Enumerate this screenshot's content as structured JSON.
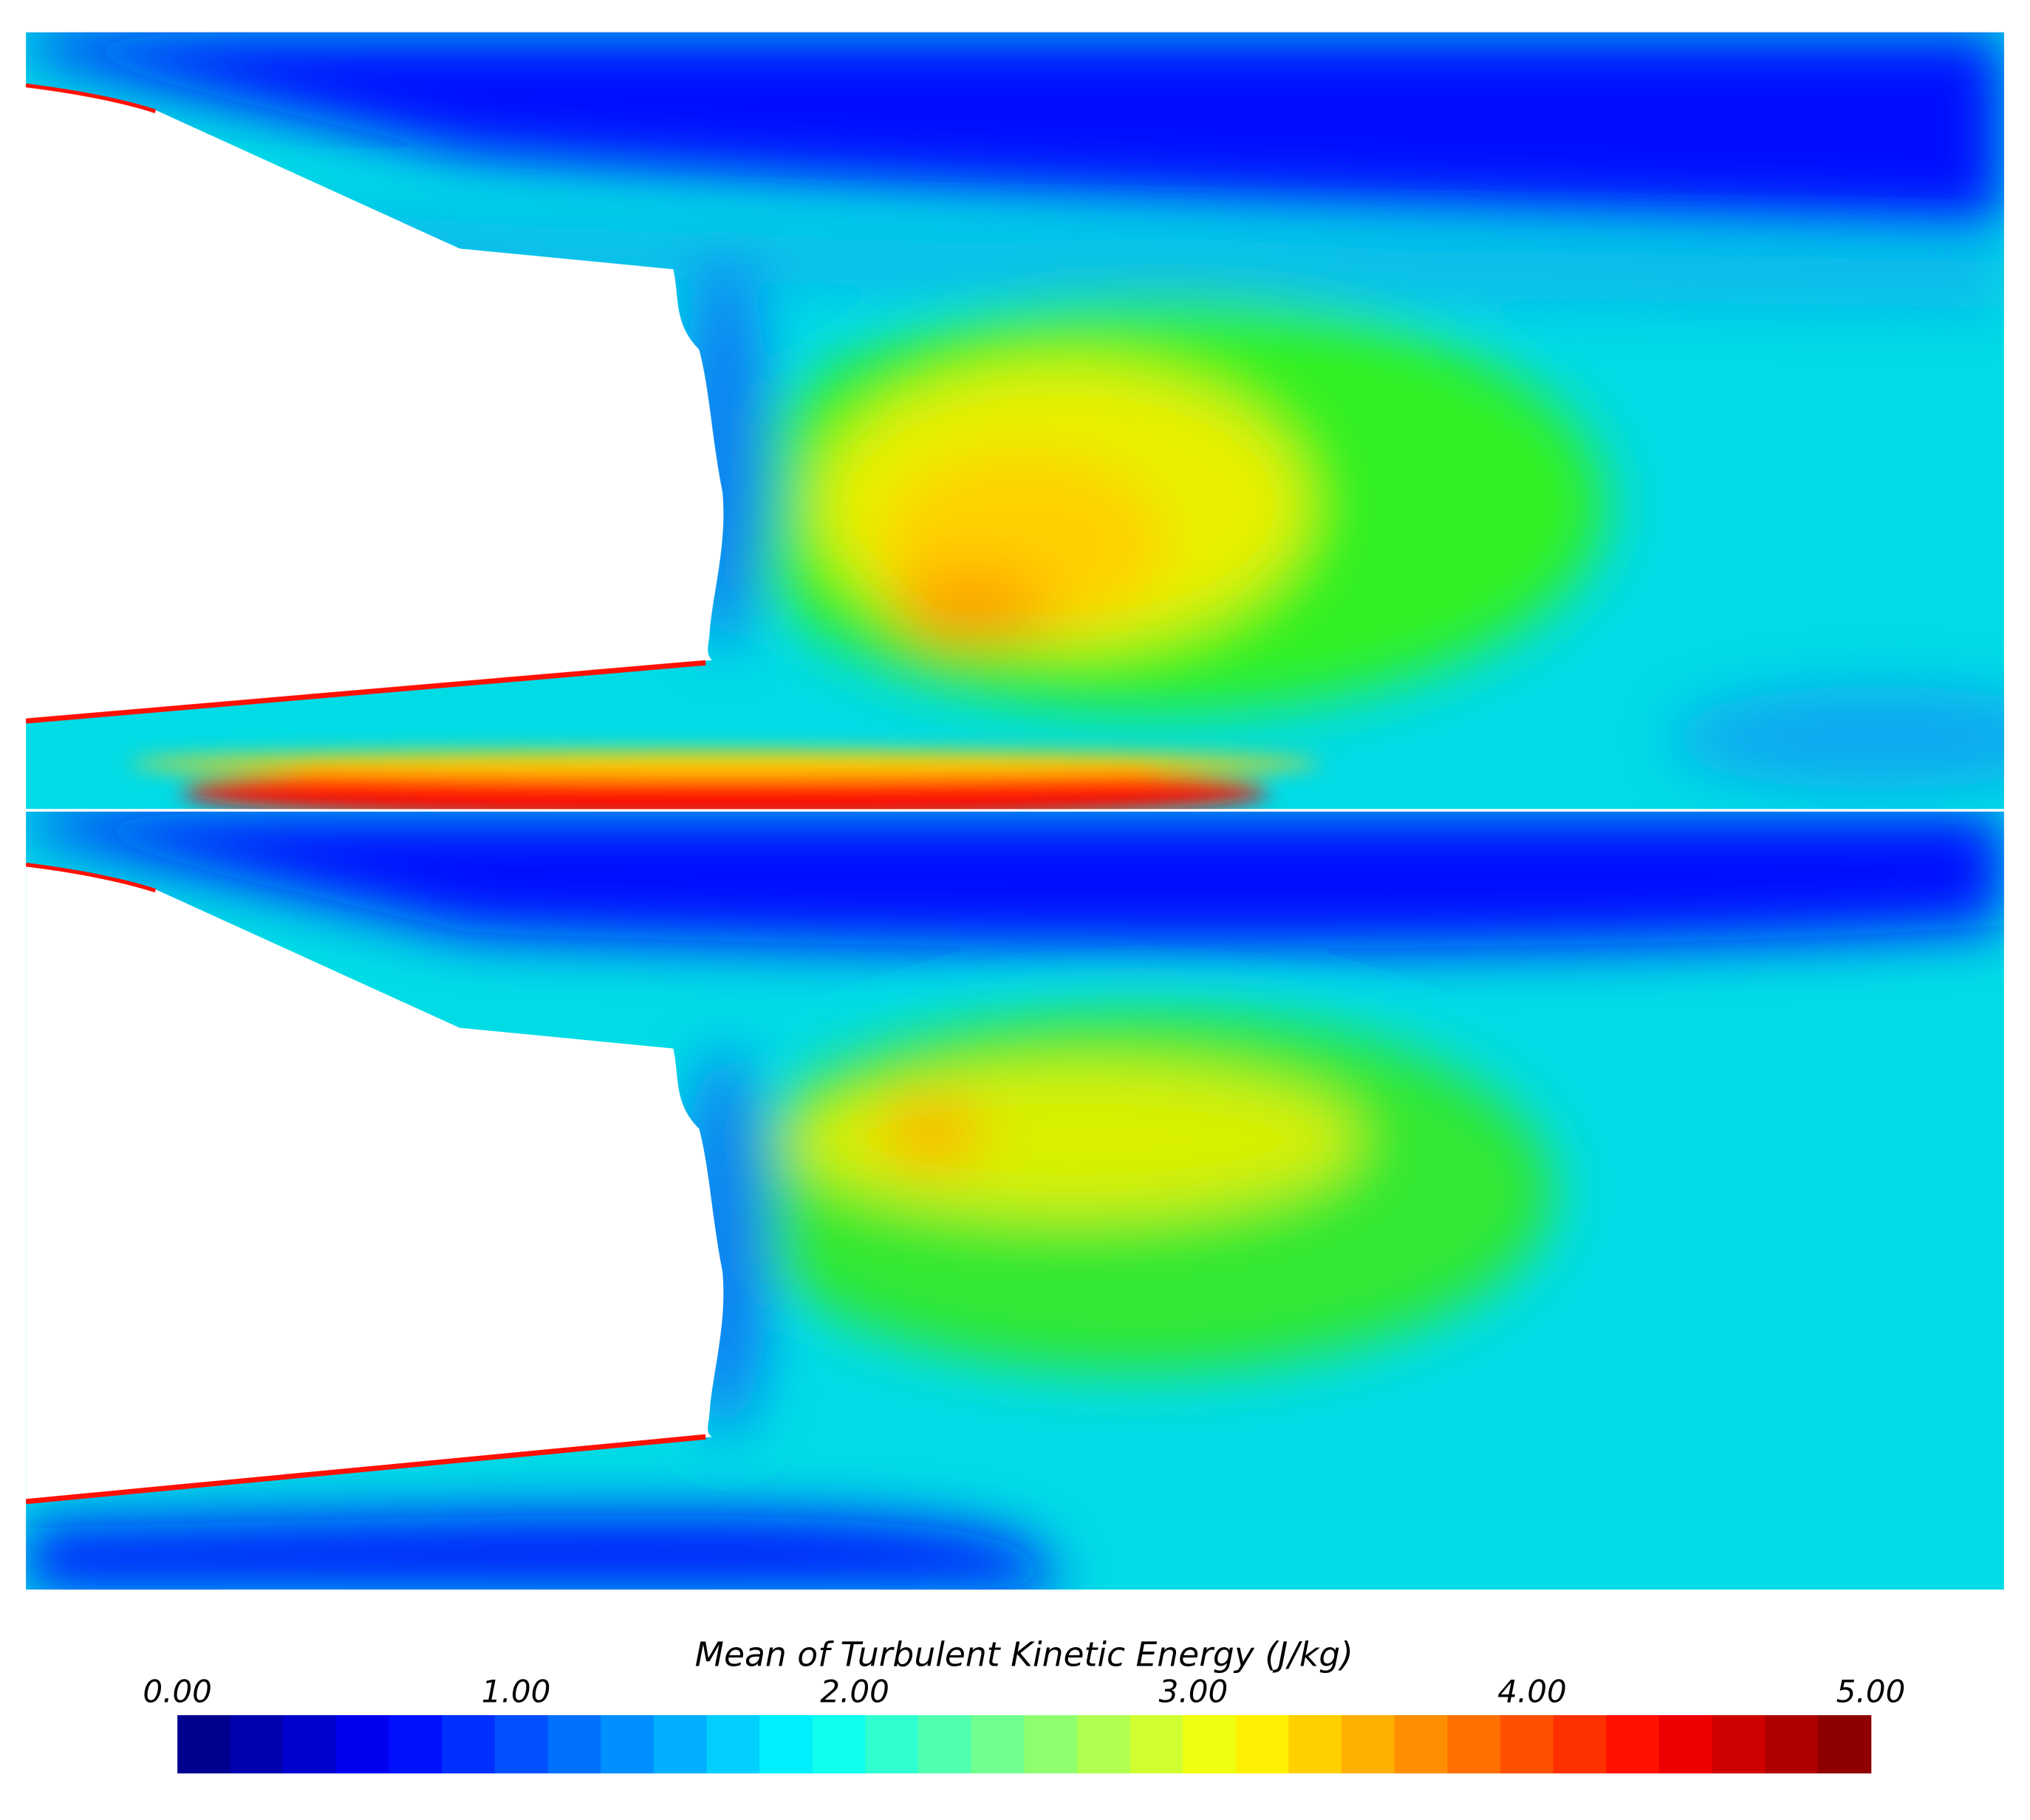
{
  "chart_data": {
    "type": "contour",
    "colorbar": {
      "title": "Mean of Turbulent Kinetic Energy (J/kg)",
      "clim": [
        0,
        5
      ],
      "levels": 32,
      "colormap": "jet",
      "ticks": [
        {
          "value": 0,
          "label": "0.00"
        },
        {
          "value": 1,
          "label": "1.00"
        },
        {
          "value": 2,
          "label": "2.00"
        },
        {
          "value": 3,
          "label": "3.00"
        },
        {
          "value": 4,
          "label": "4.00"
        },
        {
          "value": 5,
          "label": "5.00"
        }
      ]
    }
  }
}
